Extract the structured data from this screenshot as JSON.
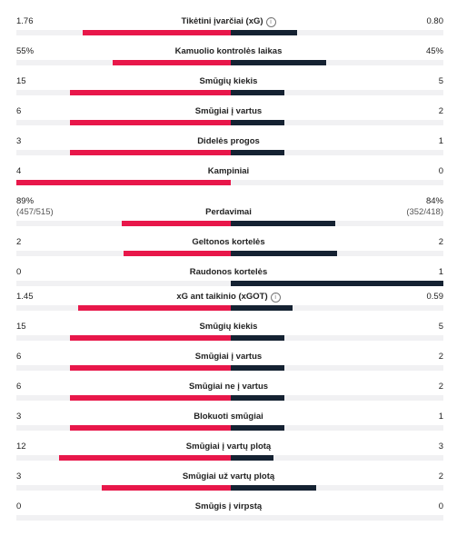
{
  "colors": {
    "home": "#e8174a",
    "away": "#152232",
    "track": "#f1f1f3"
  },
  "stats": [
    {
      "label": "Tikėtini įvarčiai (xG)",
      "info": "i",
      "home": "1.76",
      "away": "0.80",
      "home_frac": 0.69,
      "away_frac": 0.31
    },
    {
      "label": "Kamuolio kontrolės laikas",
      "home": "55%",
      "away": "45%",
      "home_frac": 0.55,
      "away_frac": 0.45
    },
    {
      "label": "Smūgių kiekis",
      "home": "15",
      "away": "5",
      "home_frac": 0.75,
      "away_frac": 0.25
    },
    {
      "label": "Smūgiai į vartus",
      "home": "6",
      "away": "2",
      "home_frac": 0.75,
      "away_frac": 0.25
    },
    {
      "label": "Didelės progos",
      "home": "3",
      "away": "1",
      "home_frac": 0.75,
      "away_frac": 0.25
    },
    {
      "label": "Kampiniai",
      "home": "4",
      "away": "0",
      "home_frac": 1.0,
      "away_frac": 0.0
    },
    {
      "label": "Perdavimai",
      "home": "89%",
      "home_sub": "(457/515)",
      "away": "84%",
      "away_sub": "(352/418)",
      "home_frac": 0.51,
      "away_frac": 0.49
    },
    {
      "label": "Geltonos kortelės",
      "home": "2",
      "away": "2",
      "home_frac": 0.5,
      "away_frac": 0.5
    },
    {
      "label": "Raudonos kortelės",
      "home": "0",
      "away": "1",
      "home_frac": 0.0,
      "away_frac": 1.0
    },
    {
      "label": "xG ant taikinio (xGOT)",
      "info": "i",
      "home": "1.45",
      "away": "0.59",
      "home_frac": 0.71,
      "away_frac": 0.29
    },
    {
      "label": "Smūgių kiekis",
      "home": "15",
      "away": "5",
      "home_frac": 0.75,
      "away_frac": 0.25
    },
    {
      "label": "Smūgiai į vartus",
      "home": "6",
      "away": "2",
      "home_frac": 0.75,
      "away_frac": 0.25
    },
    {
      "label": "Smūgiai ne į vartus",
      "home": "6",
      "away": "2",
      "home_frac": 0.75,
      "away_frac": 0.25
    },
    {
      "label": "Blokuoti smūgiai",
      "home": "3",
      "away": "1",
      "home_frac": 0.75,
      "away_frac": 0.25
    },
    {
      "label": "Smūgiai į vartų plotą",
      "home": "12",
      "away": "3",
      "home_frac": 0.8,
      "away_frac": 0.2
    },
    {
      "label": "Smūgiai už vartų plotą",
      "home": "3",
      "away": "2",
      "home_frac": 0.6,
      "away_frac": 0.4
    },
    {
      "label": "Smūgis į virpstą",
      "home": "0",
      "away": "0",
      "home_frac": 0.0,
      "away_frac": 0.0
    }
  ]
}
